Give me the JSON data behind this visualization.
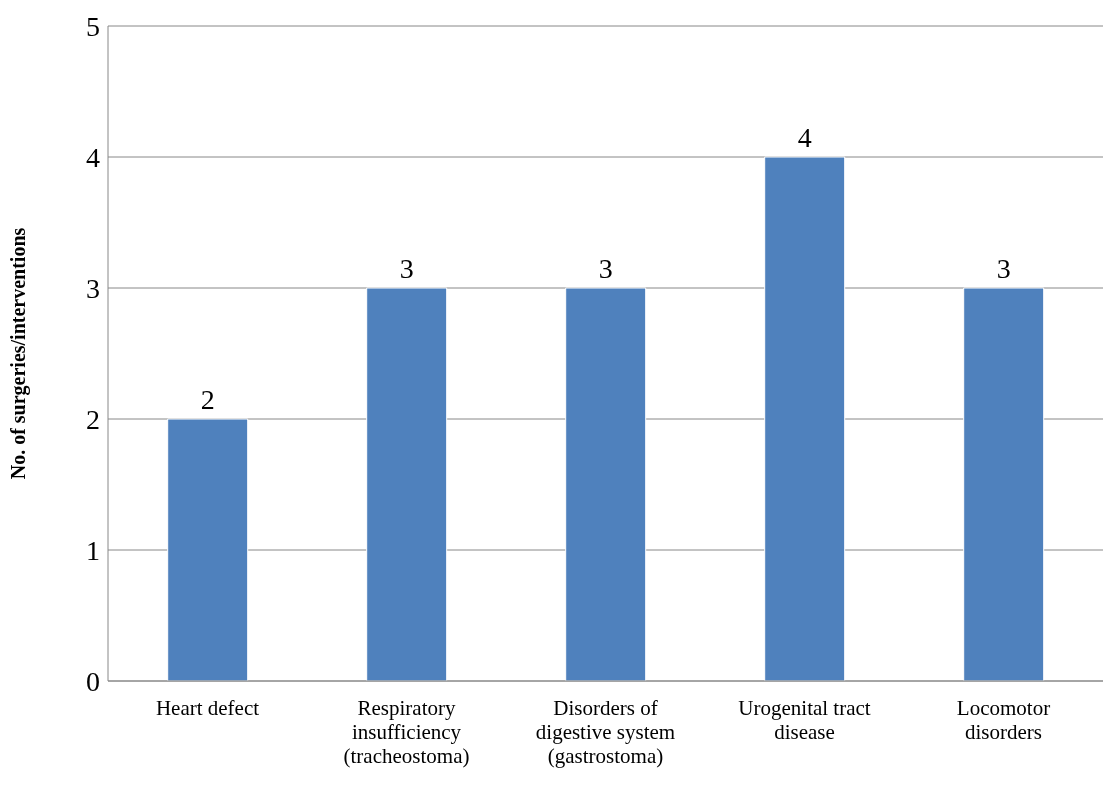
{
  "chart_data": {
    "type": "bar",
    "ylabel": "No. of surgeries/interventions",
    "categories": [
      "Heart defect",
      "Respiratory insufficiency (tracheostoma)",
      "Disorders of digestive system (gastrostoma)",
      "Urogenital tract disease",
      "Locomotor disorders"
    ],
    "values": [
      2,
      3,
      3,
      4,
      3
    ],
    "color": "#4f81bd",
    "ylim": [
      0,
      5
    ],
    "yticks": [
      0,
      1,
      2,
      3,
      4,
      5
    ],
    "grid": "y",
    "data_labels": true
  }
}
